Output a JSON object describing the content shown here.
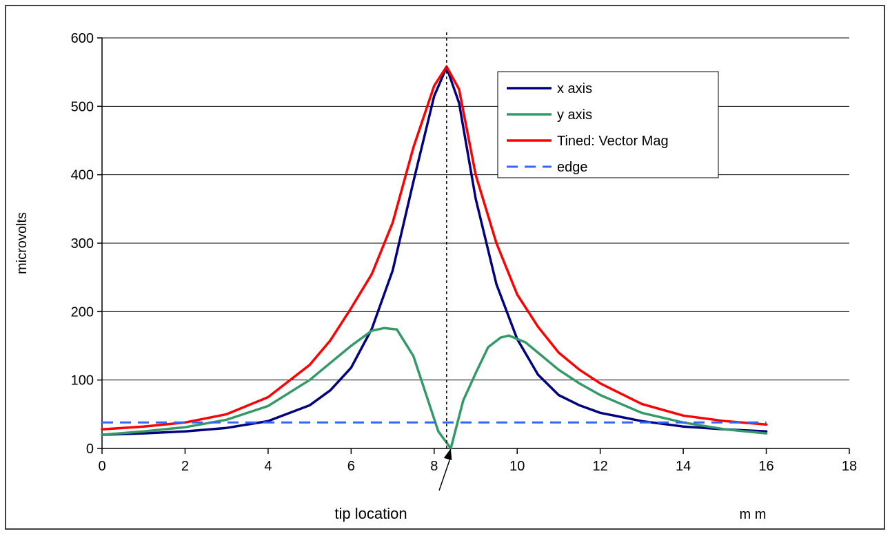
{
  "chart_data": {
    "type": "line",
    "title": "",
    "xlabel": "m m",
    "ylabel": "microvolts",
    "xlim": [
      0,
      18
    ],
    "ylim": [
      0,
      600
    ],
    "x_ticks": [
      "0",
      "2",
      "4",
      "6",
      "8",
      "10",
      "12",
      "14",
      "16",
      "18"
    ],
    "y_ticks": [
      "0",
      "100",
      "200",
      "300",
      "400",
      "500",
      "600"
    ],
    "grid": "horizontal",
    "legend_position": "top-right",
    "annotation": {
      "text": "tip location",
      "x": 8.4,
      "y": 0
    },
    "marker_line_x": 8.3,
    "series": [
      {
        "name": "x axis",
        "color": "#000080",
        "style": "solid",
        "x": [
          0,
          1,
          2,
          3,
          4,
          5,
          5.5,
          6,
          6.5,
          7,
          7.5,
          8,
          8.3,
          8.6,
          9,
          9.5,
          10,
          10.5,
          11,
          11.5,
          12,
          13,
          14,
          15,
          16
        ],
        "y": [
          20,
          22,
          25,
          30,
          40,
          63,
          85,
          118,
          175,
          260,
          390,
          515,
          557,
          505,
          365,
          240,
          160,
          108,
          78,
          63,
          52,
          40,
          32,
          28,
          25
        ]
      },
      {
        "name": "y axis",
        "color": "#339966",
        "style": "solid",
        "x": [
          0,
          1,
          2,
          3,
          4,
          5,
          5.5,
          6,
          6.5,
          6.8,
          7.1,
          7.5,
          7.8,
          8.1,
          8.4,
          8.7,
          9.0,
          9.3,
          9.6,
          9.8,
          10.2,
          10.5,
          11,
          11.5,
          12,
          13,
          14,
          15,
          16
        ],
        "y": [
          20,
          25,
          31,
          42,
          62,
          100,
          125,
          150,
          172,
          176,
          174,
          135,
          80,
          25,
          0,
          70,
          110,
          148,
          162,
          165,
          155,
          140,
          115,
          95,
          78,
          52,
          38,
          28,
          22
        ]
      },
      {
        "name": "Tined: Vector  Mag",
        "color": "#ff0000",
        "style": "solid",
        "x": [
          0,
          1,
          2,
          3,
          4,
          5,
          5.5,
          6,
          6.5,
          7,
          7.5,
          8,
          8.3,
          8.6,
          9,
          9.5,
          10,
          10.5,
          11,
          11.5,
          12,
          13,
          14,
          15,
          16
        ],
        "y": [
          28,
          32,
          38,
          50,
          75,
          122,
          158,
          205,
          255,
          330,
          440,
          530,
          558,
          525,
          400,
          300,
          225,
          178,
          140,
          115,
          95,
          65,
          48,
          40,
          35
        ]
      },
      {
        "name": "edge",
        "color": "#3366ff",
        "style": "dashed",
        "x": [
          0,
          16
        ],
        "y": [
          38,
          38
        ]
      }
    ]
  }
}
